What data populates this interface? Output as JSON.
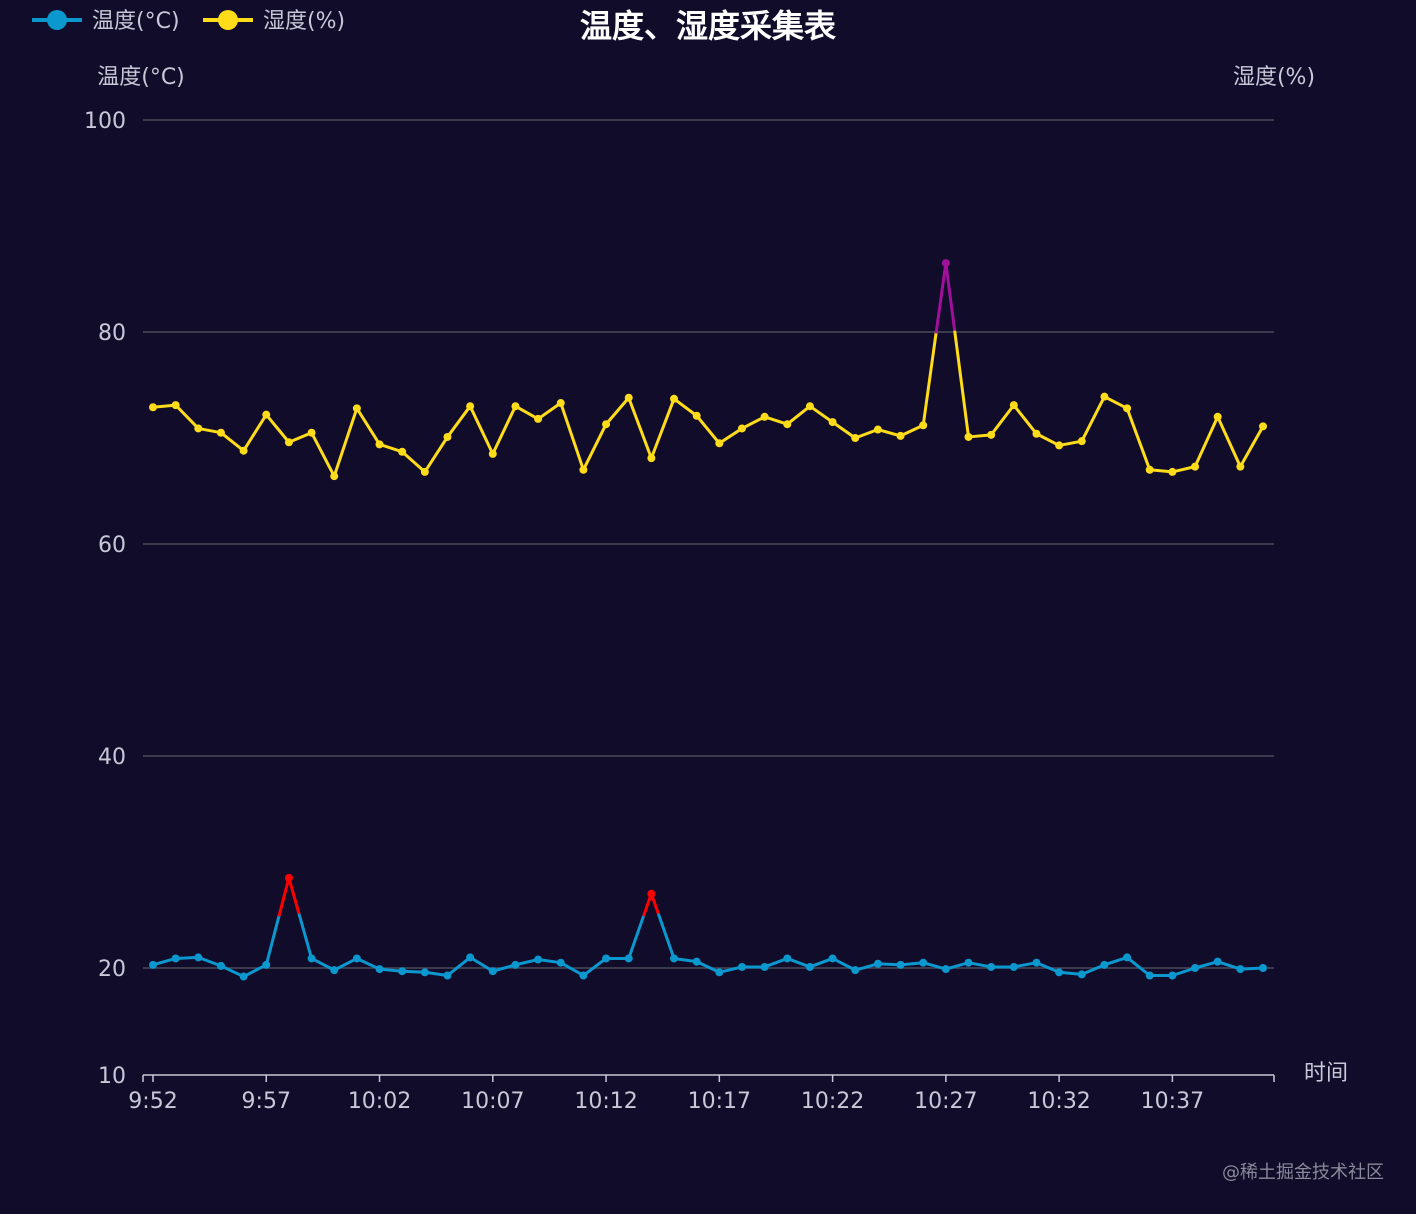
{
  "chart_data": {
    "type": "line",
    "title": "温度、湿度采集表",
    "xlabel": "时间",
    "ylabel_left": "温度(°C)",
    "ylabel_right": "湿度(%)",
    "y_ticks": [
      "10",
      "20",
      "40",
      "60",
      "80",
      "100"
    ],
    "y_tick_values": [
      10,
      20,
      40,
      60,
      80,
      100
    ],
    "x_tick_labels": [
      "9:52",
      "9:57",
      "10:02",
      "10:07",
      "10:12",
      "10:17",
      "10:22",
      "10:27",
      "10:32",
      "10:37"
    ],
    "x_tick_every": 5,
    "point_count": 50,
    "legend_position": "top-left",
    "grid": true,
    "colors": {
      "background": "#100c2a",
      "temperature": "#0a98cf",
      "temperature_alert": "#ff0000",
      "humidity": "#ffdc1a",
      "humidity_alert": "#a0109a",
      "grid": "#4a4a5a",
      "axis": "#c8c8d8"
    },
    "thresholds": {
      "temperature": 25,
      "humidity": 80
    },
    "series": [
      {
        "name": "温度(°C)",
        "values": [
          20.3,
          20.9,
          21.0,
          20.2,
          19.2,
          20.3,
          28.5,
          20.9,
          19.8,
          20.9,
          19.9,
          19.7,
          19.6,
          19.3,
          21.0,
          19.7,
          20.3,
          20.8,
          20.5,
          19.3,
          20.9,
          20.9,
          27.0,
          20.9,
          20.6,
          19.6,
          20.1,
          20.1,
          20.9,
          20.1,
          20.9,
          19.8,
          20.4,
          20.3,
          20.5,
          19.9,
          20.5,
          20.1,
          20.1,
          20.5,
          19.6,
          19.4,
          20.3,
          21.0,
          19.3,
          19.3,
          20.0,
          20.6,
          19.9,
          20.0
        ]
      },
      {
        "name": "湿度(%)",
        "values": [
          72.9,
          73.1,
          70.9,
          70.5,
          68.8,
          72.2,
          69.6,
          70.5,
          66.4,
          72.8,
          69.4,
          68.7,
          66.8,
          70.1,
          73.0,
          68.5,
          73.0,
          71.8,
          73.3,
          67.0,
          71.3,
          73.8,
          68.1,
          73.7,
          72.1,
          69.5,
          70.9,
          72.0,
          71.3,
          73.0,
          71.5,
          70.0,
          70.8,
          70.2,
          71.2,
          86.5,
          70.1,
          70.3,
          73.1,
          70.4,
          69.3,
          69.7,
          73.9,
          72.8,
          67.0,
          66.8,
          67.3,
          72.0,
          67.3,
          71.1
        ]
      }
    ]
  },
  "watermark": "@稀土掘金技术社区"
}
